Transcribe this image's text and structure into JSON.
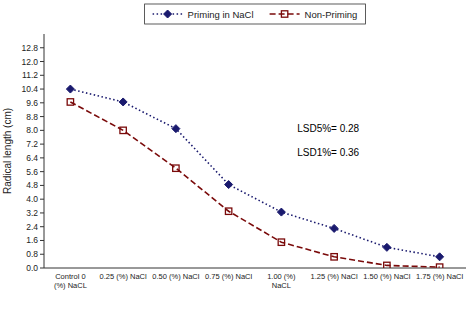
{
  "chart_data": {
    "type": "line",
    "categories": [
      "Control 0\n(%) NaCL",
      "0.25 (%) NaCl",
      "0.50 (%) NaCl",
      "0.75 (%) NaCl",
      "1.00 (%)\nNaCL",
      "1.25 (%) NaCl",
      "1.50 (%) NaCl",
      "1.75 (%) NaCl"
    ],
    "series": [
      {
        "name": "Priming in NaCl",
        "color": "#1a1a6e",
        "marker": "diamond",
        "line_style": "dotted",
        "values": [
          10.4,
          9.65,
          8.1,
          4.85,
          3.25,
          2.3,
          1.2,
          0.65
        ]
      },
      {
        "name": "Non-Priming",
        "color": "#7a0a0a",
        "marker": "square",
        "line_style": "dashed",
        "values": [
          9.65,
          8.0,
          5.8,
          3.3,
          1.5,
          0.65,
          0.15,
          0.05
        ]
      }
    ],
    "ylabel": "Radical length (cm)",
    "ylim": [
      0,
      13.6
    ],
    "yticks": [
      {
        "value": 0.0,
        "label": "0.0"
      },
      0.8,
      1.6,
      2.4,
      3.2,
      {
        "value": 4.0,
        "label": "4.0"
      },
      4.8,
      5.6,
      6.4,
      7.2,
      {
        "value": 8.0,
        "label": "8.0"
      },
      8.8,
      9.6,
      10.4,
      11.2,
      {
        "value": 12.0,
        "label": "12.0"
      },
      12.8
    ],
    "annotations": [
      "LSD5%= 0.28",
      "LSD1%= 0.36"
    ],
    "grid": false,
    "legend": "top"
  }
}
